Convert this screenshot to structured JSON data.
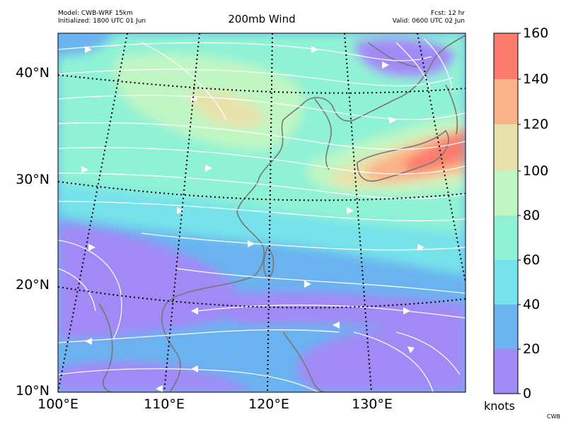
{
  "header": {
    "model": "Model: CWB-WRF 15km",
    "initialized": "Initialized: 1800 UTC 01 Jun",
    "title": "200mb Wind",
    "forecast": "Fcst: 12 hr",
    "valid": "Valid: 0600 UTC 02 Jun"
  },
  "map": {
    "lat_labels": [
      "40°N",
      "30°N",
      "20°N",
      "10°N"
    ],
    "lon_labels": [
      "100°E",
      "110°E",
      "120°E",
      "130°E"
    ]
  },
  "colorbar": {
    "ticks": [
      "160",
      "140",
      "120",
      "100",
      "80",
      "60",
      "40",
      "20",
      "0"
    ],
    "unit": "knots",
    "colors": [
      "#a28af6",
      "#6ab3f0",
      "#76e2e9",
      "#8ff2d4",
      "#c0f6c3",
      "#e8e1ac",
      "#fcb288",
      "#fb7c6d"
    ]
  },
  "footer": {
    "credit": "CWB"
  }
}
